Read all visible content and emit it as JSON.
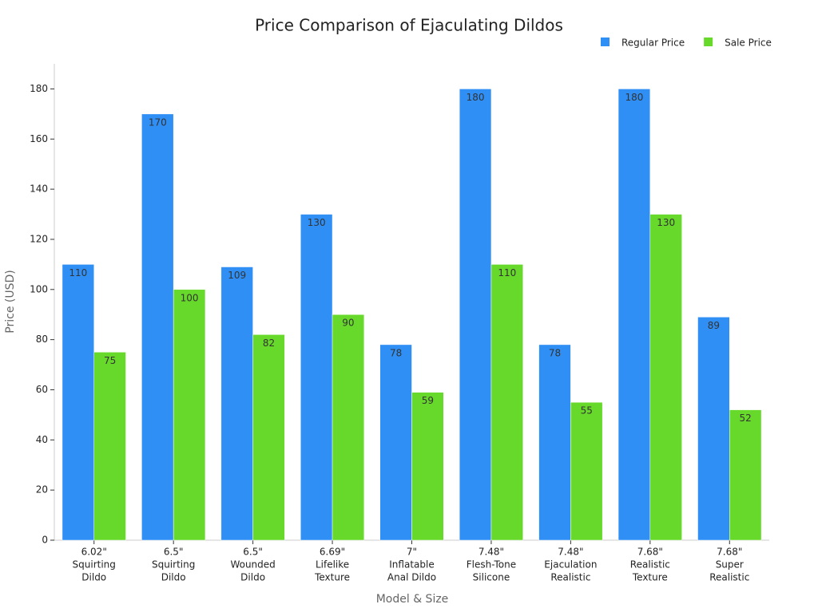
{
  "chart_data": {
    "type": "bar",
    "title": "Price Comparison of Ejaculating Dildos",
    "xlabel": "Model & Size",
    "ylabel": "Price (USD)",
    "categories": [
      [
        "6.02\"",
        "Squirting",
        "Dildo"
      ],
      [
        "6.5\"",
        "Squirting",
        "Dildo"
      ],
      [
        "6.5\"",
        "Wounded",
        "Dildo"
      ],
      [
        "6.69\"",
        "Lifelike",
        "Texture"
      ],
      [
        "7\"",
        "Inflatable",
        "Anal Dildo"
      ],
      [
        "7.48\"",
        "Flesh-Tone",
        "Silicone"
      ],
      [
        "7.48\"",
        "Ejaculation",
        "Realistic"
      ],
      [
        "7.68\"",
        "Realistic",
        "Texture"
      ],
      [
        "7.68\"",
        "Super",
        "Realistic"
      ]
    ],
    "series": [
      {
        "name": "Regular Price",
        "color": "#2f8ff5",
        "values": [
          110,
          170,
          109,
          130,
          78,
          180,
          78,
          180,
          89
        ]
      },
      {
        "name": "Sale Price",
        "color": "#66d92a",
        "values": [
          75,
          100,
          82,
          90,
          59,
          110,
          55,
          130,
          52
        ]
      }
    ],
    "ylim": [
      0,
      190
    ],
    "yticks": [
      0,
      20,
      40,
      60,
      80,
      100,
      120,
      140,
      160,
      180
    ]
  }
}
